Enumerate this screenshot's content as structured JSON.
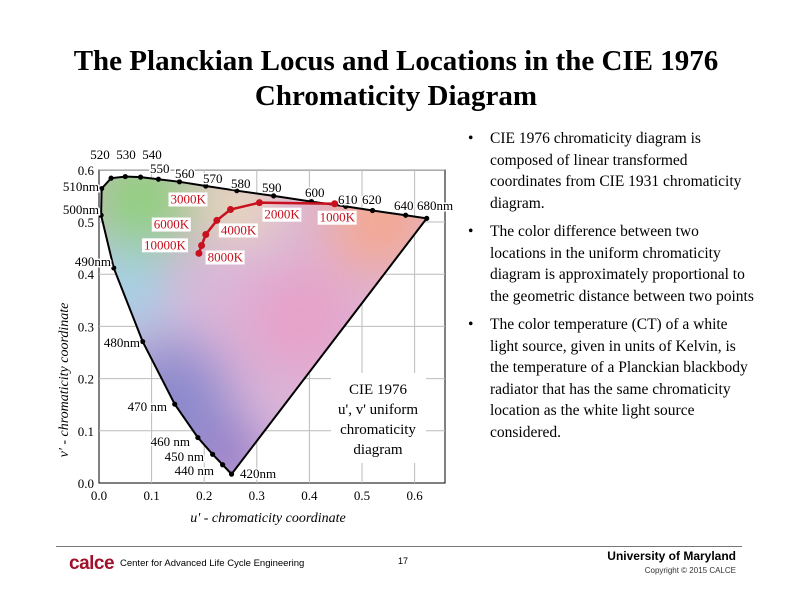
{
  "slide": {
    "title": "The Planckian Locus and Locations in the CIE 1976 Chromaticity Diagram",
    "bullets": [
      "CIE 1976 chromaticity diagram is composed of linear transformed coordinates from CIE 1931 chromaticity diagram.",
      "The color difference between two locations in the uniform chromaticity diagram is approximately proportional to the geometric distance between two points",
      "The color temperature (CT) of a white light source, given in units of Kelvin, is the temperature of a Planckian blackbody radiator that has the same chromaticity location as the white light source considered."
    ]
  },
  "footer": {
    "logo": "calce",
    "center": "Center for Advanced Life Cycle Engineering",
    "page": "17",
    "university": "University of Maryland",
    "copyright": "Copyright © 2015 CALCE"
  },
  "chart_data": {
    "type": "scatter",
    "xlabel": "u' - chromaticity coordinate",
    "ylabel": "v' - chromaticity coordinate",
    "xlim": [
      0,
      0.65
    ],
    "ylim": [
      0,
      0.6
    ],
    "xticks": [
      "0.0",
      "0.1",
      "0.2",
      "0.3",
      "0.4",
      "0.5",
      "0.6"
    ],
    "yticks": [
      "0.0",
      "0.1",
      "0.2",
      "0.3",
      "0.4",
      "0.5",
      "0.6"
    ],
    "inset_label": [
      "CIE 1976",
      "u', v' uniform",
      "chromaticity",
      "diagram"
    ],
    "spectral_locus": [
      {
        "label": "420nm",
        "u": 0.252,
        "v": 0.017
      },
      {
        "label": "440 nm",
        "u": 0.235,
        "v": 0.035
      },
      {
        "label": "450 nm",
        "u": 0.216,
        "v": 0.055
      },
      {
        "label": "460 nm",
        "u": 0.188,
        "v": 0.087
      },
      {
        "label": "470 nm",
        "u": 0.144,
        "v": 0.151
      },
      {
        "label": "480nm",
        "u": 0.083,
        "v": 0.271
      },
      {
        "label": "490nm",
        "u": 0.028,
        "v": 0.412
      },
      {
        "label": "500nm",
        "u": 0.004,
        "v": 0.513
      },
      {
        "label": "510nm",
        "u": 0.005,
        "v": 0.564
      },
      {
        "label": "520",
        "u": 0.023,
        "v": 0.584
      },
      {
        "label": "530",
        "u": 0.05,
        "v": 0.587
      },
      {
        "label": "540",
        "u": 0.079,
        "v": 0.586
      },
      {
        "label": "550",
        "u": 0.113,
        "v": 0.582
      },
      {
        "label": "560",
        "u": 0.153,
        "v": 0.577
      },
      {
        "label": "570",
        "u": 0.203,
        "v": 0.569
      },
      {
        "label": "580",
        "u": 0.262,
        "v": 0.56
      },
      {
        "label": "590",
        "u": 0.332,
        "v": 0.55
      },
      {
        "label": "600",
        "u": 0.404,
        "v": 0.539
      },
      {
        "label": "610",
        "u": 0.469,
        "v": 0.53
      },
      {
        "label": "620",
        "u": 0.52,
        "v": 0.522
      },
      {
        "label": "640",
        "u": 0.583,
        "v": 0.513
      },
      {
        "label": "680nm",
        "u": 0.623,
        "v": 0.507
      }
    ],
    "planckian_locus": [
      {
        "label": "1000K",
        "u": 0.448,
        "v": 0.535
      },
      {
        "label": "2000K",
        "u": 0.305,
        "v": 0.537
      },
      {
        "label": "3000K",
        "u": 0.25,
        "v": 0.524
      },
      {
        "label": "4000K",
        "u": 0.224,
        "v": 0.503
      },
      {
        "label": "6000K",
        "u": 0.203,
        "v": 0.476
      },
      {
        "label": "8000K",
        "u": 0.195,
        "v": 0.455
      },
      {
        "label": "10000K",
        "u": 0.19,
        "v": 0.44
      }
    ],
    "colors": {
      "locus": "#000000",
      "planckian": "#c8101e"
    }
  }
}
